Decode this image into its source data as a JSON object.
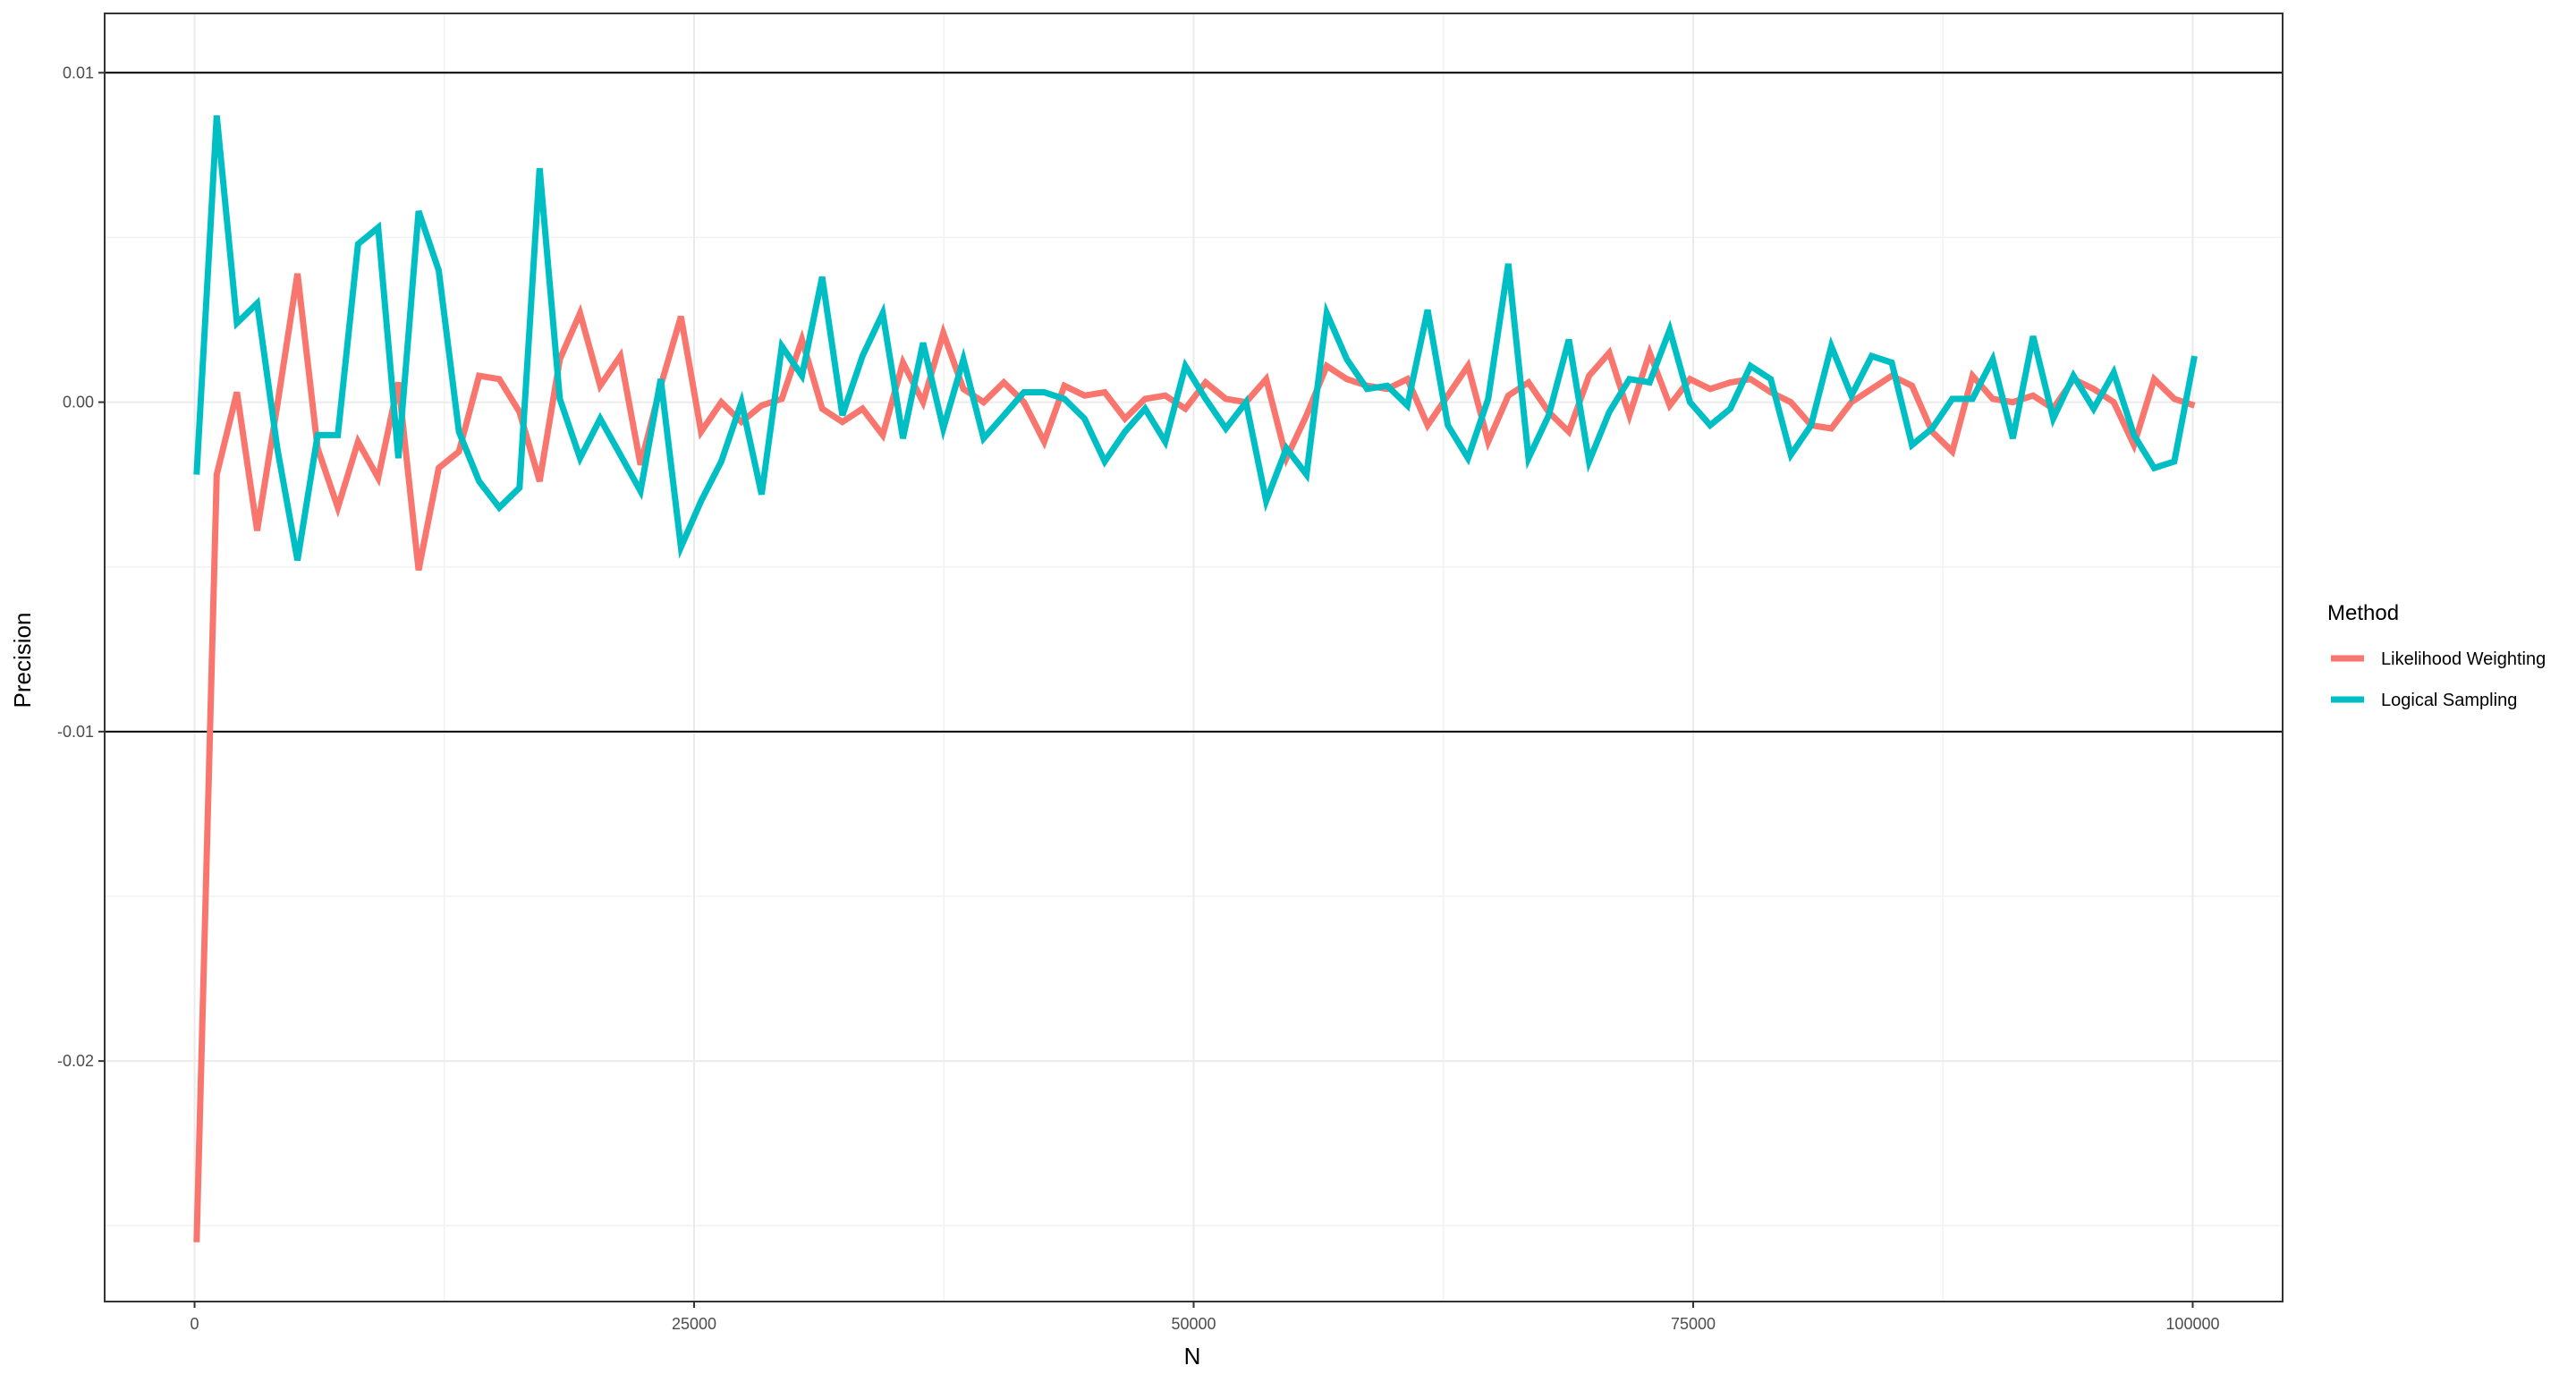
{
  "chart_data": {
    "type": "line",
    "xlabel": "N",
    "ylabel": "Precision",
    "xlim": [
      -4500,
      104500
    ],
    "ylim": [
      -0.0273,
      0.0118
    ],
    "x_ticks": [
      0,
      25000,
      50000,
      75000,
      100000
    ],
    "x_tick_labels": [
      "0",
      "25000",
      "50000",
      "75000",
      "100000"
    ],
    "y_ticks": [
      0.01,
      0.0,
      -0.01,
      -0.02
    ],
    "y_tick_labels": [
      "0.01",
      "0.00",
      "-0.01",
      "-0.02"
    ],
    "y_minor_ticks": [
      0.005,
      -0.005,
      -0.015,
      -0.025
    ],
    "x_minor_ticks": [
      12500,
      37500,
      62500,
      87500
    ],
    "reference_lines_y": [
      0.01,
      -0.01
    ],
    "grid": true,
    "legend_position": "right",
    "legend_title": "Method",
    "x": [
      100,
      1110,
      2120,
      3130,
      4140,
      5150,
      6160,
      7170,
      8180,
      9190,
      10200,
      11210,
      12220,
      13230,
      14240,
      15250,
      16260,
      17270,
      18280,
      19290,
      20300,
      21310,
      22320,
      23330,
      24340,
      25350,
      26360,
      27370,
      28380,
      29390,
      30400,
      31410,
      32420,
      33430,
      34440,
      35450,
      36460,
      37470,
      38480,
      39490,
      40500,
      41510,
      42520,
      43530,
      44540,
      45550,
      46560,
      47570,
      48580,
      49590,
      50600,
      51610,
      52620,
      53630,
      54640,
      55650,
      56660,
      57670,
      58680,
      59690,
      60700,
      61710,
      62720,
      63730,
      64740,
      65750,
      66760,
      67770,
      68780,
      69790,
      70800,
      71810,
      72820,
      73830,
      74840,
      75850,
      76860,
      77870,
      78880,
      79890,
      80900,
      81910,
      82920,
      83930,
      84940,
      85950,
      86960,
      87970,
      88980,
      89990,
      91000,
      92010,
      93020,
      94030,
      95040,
      96050,
      97060,
      98070,
      99080,
      100090
    ],
    "series": [
      {
        "name": "Likelihood Weighting",
        "color": "#F8766D",
        "values": [
          -0.0255,
          -0.0022,
          0.0003,
          -0.0039,
          -0.0001,
          0.0039,
          -0.0014,
          -0.0032,
          -0.0012,
          -0.0023,
          0.0006,
          -0.0051,
          -0.002,
          -0.0015,
          0.0008,
          0.0007,
          -0.0003,
          -0.0024,
          0.0013,
          0.0027,
          0.0005,
          0.0014,
          -0.0019,
          0.0005,
          0.0026,
          -0.0009,
          0.0,
          -0.0006,
          -0.0001,
          0.0001,
          0.0019,
          -0.0002,
          -0.0006,
          -0.0002,
          -0.001,
          0.0012,
          0.0,
          0.0021,
          0.0004,
          0.0,
          0.0006,
          0.0,
          -0.0012,
          0.0005,
          0.0002,
          0.0003,
          -0.0005,
          0.0001,
          0.0002,
          -0.0002,
          0.0006,
          0.0001,
          0.0,
          0.0007,
          -0.0017,
          -0.0004,
          0.0011,
          0.0007,
          0.0005,
          0.0004,
          0.0007,
          -0.0007,
          0.0002,
          0.0011,
          -0.0012,
          0.0002,
          0.0006,
          -0.0003,
          -0.0009,
          0.0008,
          0.0015,
          -0.0004,
          0.0015,
          -0.0001,
          0.0007,
          0.0004,
          0.0006,
          0.0007,
          0.0003,
          0.0,
          -0.0007,
          -0.0008,
          0.0,
          0.0004,
          0.0008,
          0.0005,
          -0.0009,
          -0.0015,
          0.0008,
          0.0001,
          0.0,
          0.0002,
          -0.0002,
          0.0007,
          0.0004,
          0.0,
          -0.0013,
          0.0007,
          0.0001,
          -0.0001
        ]
      },
      {
        "name": "Logical Sampling",
        "color": "#00BFC4",
        "values": [
          -0.0022,
          0.0087,
          0.0024,
          0.003,
          -0.0014,
          -0.0048,
          -0.001,
          -0.001,
          0.0048,
          0.0053,
          -0.0017,
          0.0058,
          0.004,
          -0.0009,
          -0.0024,
          -0.0032,
          -0.0026,
          0.0071,
          0.0001,
          -0.0017,
          -0.0005,
          -0.0016,
          -0.0027,
          0.0007,
          -0.0044,
          -0.003,
          -0.0018,
          0.0,
          -0.0028,
          0.0017,
          0.0008,
          0.0038,
          -0.0004,
          0.0014,
          0.0027,
          -0.0011,
          0.0018,
          -0.0008,
          0.0013,
          -0.0011,
          -0.0004,
          0.0003,
          0.0003,
          0.0001,
          -0.0005,
          -0.0018,
          -0.0009,
          -0.0002,
          -0.0012,
          0.0011,
          0.0001,
          -0.0008,
          0.0,
          -0.003,
          -0.0014,
          -0.0022,
          0.0027,
          0.0013,
          0.0004,
          0.0005,
          -0.0001,
          0.0028,
          -0.0007,
          -0.0017,
          0.0001,
          0.0042,
          -0.0017,
          -0.0004,
          0.0019,
          -0.0018,
          -0.0003,
          0.0007,
          0.0006,
          0.0022,
          0.0,
          -0.0007,
          -0.0002,
          0.0011,
          0.0007,
          -0.0016,
          -0.0007,
          0.0017,
          0.0002,
          0.0014,
          0.0012,
          -0.0013,
          -0.0008,
          0.0001,
          0.0001,
          0.0013,
          -0.0011,
          0.002,
          -0.0005,
          0.0008,
          -0.0002,
          0.0009,
          -0.001,
          -0.002,
          -0.0018,
          0.0014
        ]
      }
    ]
  },
  "legend": {
    "title": "Method",
    "items": [
      {
        "label": "Likelihood Weighting",
        "color": "#F8766D"
      },
      {
        "label": "Logical Sampling",
        "color": "#00BFC4"
      }
    ]
  }
}
